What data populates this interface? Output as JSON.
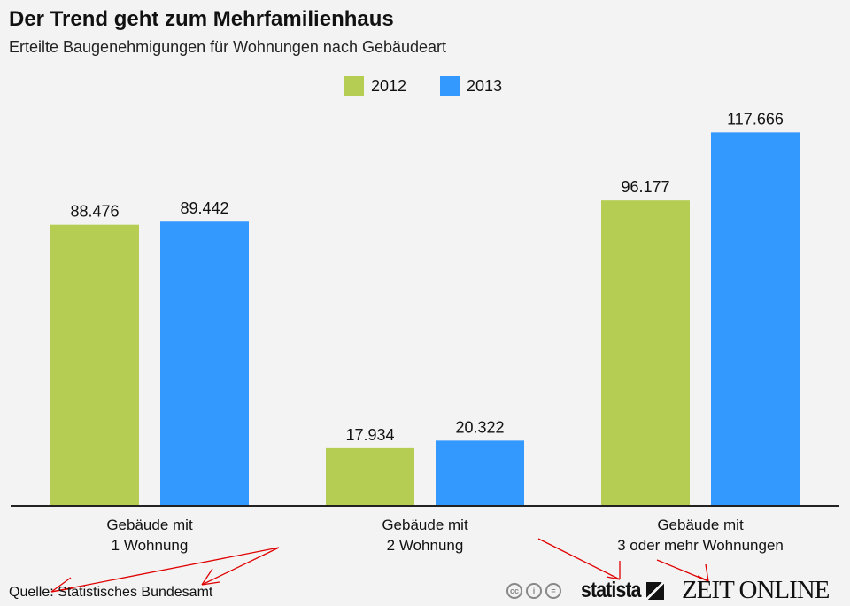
{
  "chart_data": {
    "type": "bar",
    "title": "Der Trend geht zum Mehrfamilienhaus",
    "subtitle": "Erteilte Baugenehmigungen für Wohnungen nach Gebäudeart",
    "categories": [
      [
        "Gebäude mit",
        "1 Wohnung"
      ],
      [
        "Gebäude mit",
        "2 Wohnung"
      ],
      [
        "Gebäude mit",
        "3 oder mehr Wohnungen"
      ]
    ],
    "series": [
      {
        "name": "2012",
        "color": "#b5cd52",
        "values": [
          88.476,
          17.934,
          96.177
        ],
        "labels": [
          "88.476",
          "17.934",
          "96.177"
        ]
      },
      {
        "name": "2013",
        "color": "#3399ff",
        "values": [
          89.442,
          20.322,
          117.666
        ],
        "labels": [
          "89.442",
          "20.322",
          "117.666"
        ]
      }
    ],
    "ylim": [
      0,
      120
    ],
    "grid": false,
    "legend_position": "top"
  },
  "footer": {
    "source": "Quelle: Statistisches Bundesamt",
    "cc_icons": [
      "cc-icon",
      "by-icon",
      "nd-icon"
    ],
    "statista_logo": "statista",
    "zeit_logo": "ZEIT ONLINE"
  },
  "annotation_color": "#e00000"
}
